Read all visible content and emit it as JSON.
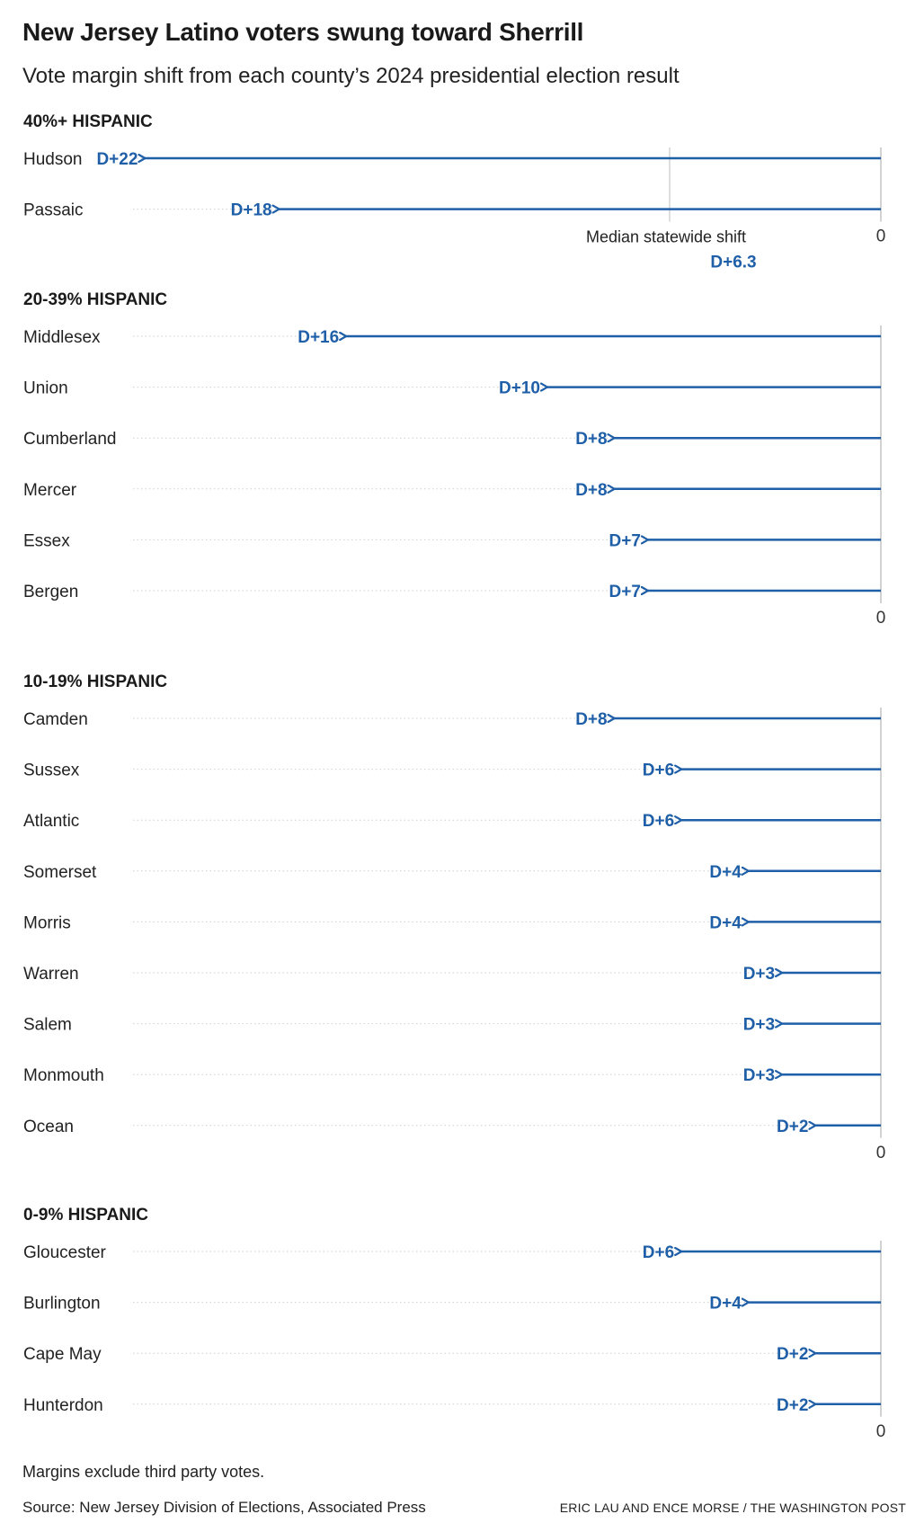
{
  "chart_data": {
    "type": "bar",
    "title": "New Jersey Latino voters swung toward Sherrill",
    "subtitle": "Vote margin shift from each county’s 2024 presidential election result",
    "xlim": [
      -22.5,
      0
    ],
    "zero_label": "0",
    "accent_color": "#1f5fa8",
    "median": {
      "label": "Median statewide shift",
      "value": -6.3,
      "display": "D+6.3"
    },
    "groups": [
      {
        "name": "40%+ HISPANIC",
        "rows": [
          {
            "county": "Hudson",
            "value": -22,
            "label": "D+22"
          },
          {
            "county": "Passaic",
            "value": -18,
            "label": "D+18"
          }
        ]
      },
      {
        "name": "20-39% HISPANIC",
        "rows": [
          {
            "county": "Middlesex",
            "value": -16,
            "label": "D+16"
          },
          {
            "county": "Union",
            "value": -10,
            "label": "D+10"
          },
          {
            "county": "Cumberland",
            "value": -8,
            "label": "D+8"
          },
          {
            "county": "Mercer",
            "value": -8,
            "label": "D+8"
          },
          {
            "county": "Essex",
            "value": -7,
            "label": "D+7"
          },
          {
            "county": "Bergen",
            "value": -7,
            "label": "D+7"
          }
        ]
      },
      {
        "name": "10-19% HISPANIC",
        "rows": [
          {
            "county": "Camden",
            "value": -8,
            "label": "D+8"
          },
          {
            "county": "Sussex",
            "value": -6,
            "label": "D+6"
          },
          {
            "county": "Atlantic",
            "value": -6,
            "label": "D+6"
          },
          {
            "county": "Somerset",
            "value": -4,
            "label": "D+4"
          },
          {
            "county": "Morris",
            "value": -4,
            "label": "D+4"
          },
          {
            "county": "Warren",
            "value": -3,
            "label": "D+3"
          },
          {
            "county": "Salem",
            "value": -3,
            "label": "D+3"
          },
          {
            "county": "Monmouth",
            "value": -3,
            "label": "D+3"
          },
          {
            "county": "Ocean",
            "value": -2,
            "label": "D+2"
          }
        ]
      },
      {
        "name": "0-9% HISPANIC",
        "rows": [
          {
            "county": "Gloucester",
            "value": -6,
            "label": "D+6"
          },
          {
            "county": "Burlington",
            "value": -4,
            "label": "D+4"
          },
          {
            "county": "Cape May",
            "value": -2,
            "label": "D+2"
          },
          {
            "county": "Hunterdon",
            "value": -2,
            "label": "D+2"
          }
        ]
      }
    ]
  },
  "footer": {
    "note": "Margins exclude third party votes.",
    "source": "Source: New Jersey Division of Elections, Associated Press",
    "credit": "ERIC LAU AND ENCE MORSE / THE WASHINGTON POST"
  }
}
